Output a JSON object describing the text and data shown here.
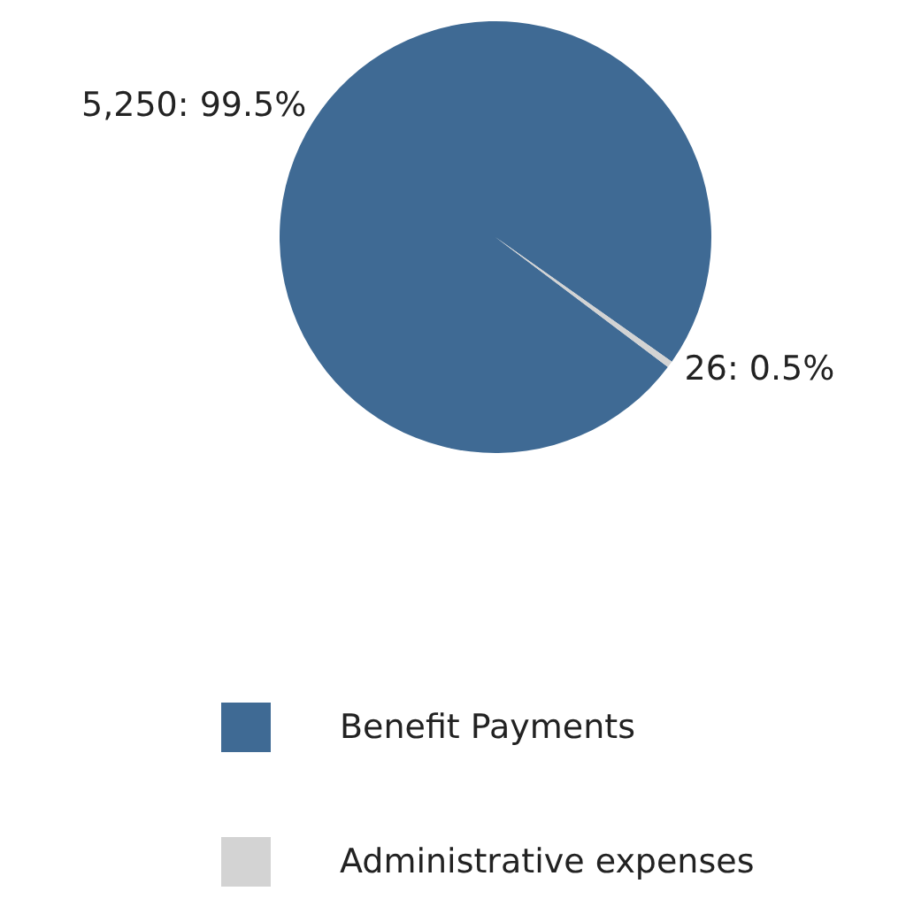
{
  "chart_data": {
    "type": "pie",
    "categories": [
      "Benefit Payments",
      "Administrative expenses"
    ],
    "values": [
      5250,
      26
    ],
    "colors": [
      "#3f6a94",
      "#d3d3d3"
    ],
    "value_labels": [
      "5,250: 99.5%",
      "26: 0.5%"
    ],
    "legend": "bottom"
  }
}
